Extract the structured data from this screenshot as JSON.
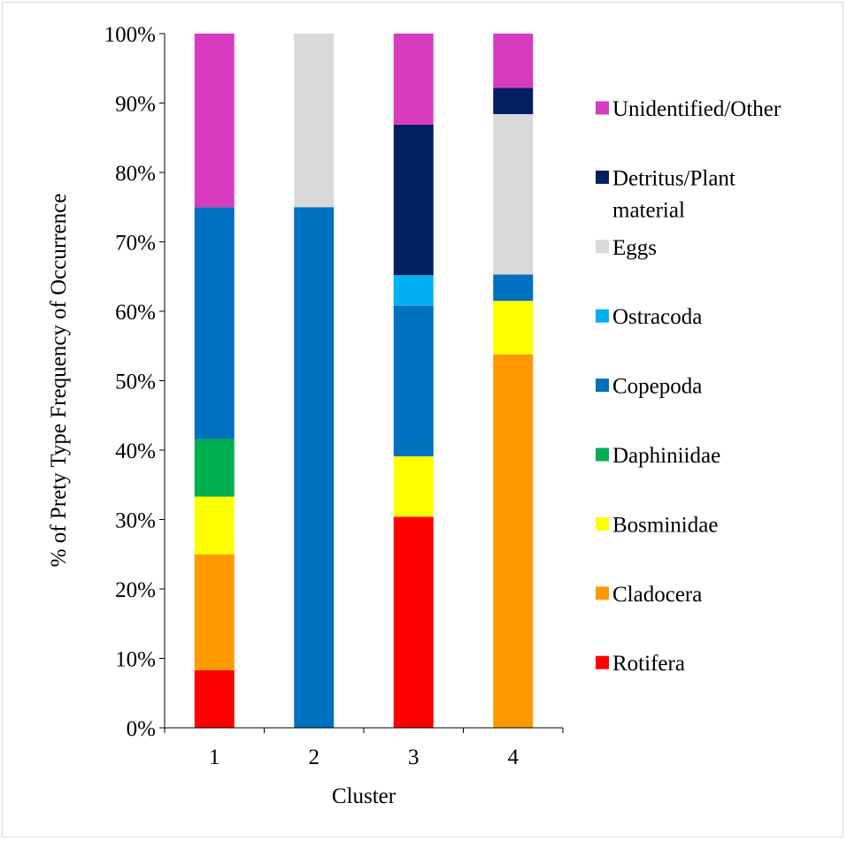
{
  "chart_data": {
    "type": "bar",
    "stacked": true,
    "percent_stacked": true,
    "title": "",
    "xlabel": "Cluster",
    "ylabel": "% of Prety Type Frequency of Occurrence",
    "categories": [
      "1",
      "2",
      "3",
      "4"
    ],
    "ylim": [
      0,
      100
    ],
    "yticks": [
      "0%",
      "10%",
      "20%",
      "30%",
      "40%",
      "50%",
      "60%",
      "70%",
      "80%",
      "90%",
      "100%"
    ],
    "grid": false,
    "legend_position": "right",
    "series": [
      {
        "name": "Rotifera",
        "color": "#ff0000",
        "values": [
          8.3,
          0,
          30.4,
          0
        ]
      },
      {
        "name": "Cladocera",
        "color": "#ff9900",
        "values": [
          16.7,
          0,
          0,
          53.8
        ]
      },
      {
        "name": "Bosminidae",
        "color": "#ffff00",
        "values": [
          8.3,
          0,
          8.7,
          7.7
        ]
      },
      {
        "name": "Daphiniidae",
        "color": "#00b050",
        "values": [
          8.3,
          0,
          0,
          0
        ]
      },
      {
        "name": "Copepoda",
        "color": "#0070c0",
        "values": [
          33.4,
          75,
          21.7,
          3.8
        ]
      },
      {
        "name": "Ostracoda",
        "color": "#00b0f0",
        "values": [
          0,
          0,
          4.4,
          0
        ]
      },
      {
        "name": "Eggs",
        "color": "#d9d9d9",
        "values": [
          0,
          25,
          0,
          23.1
        ]
      },
      {
        "name": "Detritus/Plant material",
        "color": "#002060",
        "values": [
          0,
          0,
          21.7,
          3.8
        ]
      },
      {
        "name": "Unidentified/Other",
        "color": "#d83bbf",
        "values": [
          25,
          0,
          13.1,
          7.8
        ]
      }
    ]
  }
}
